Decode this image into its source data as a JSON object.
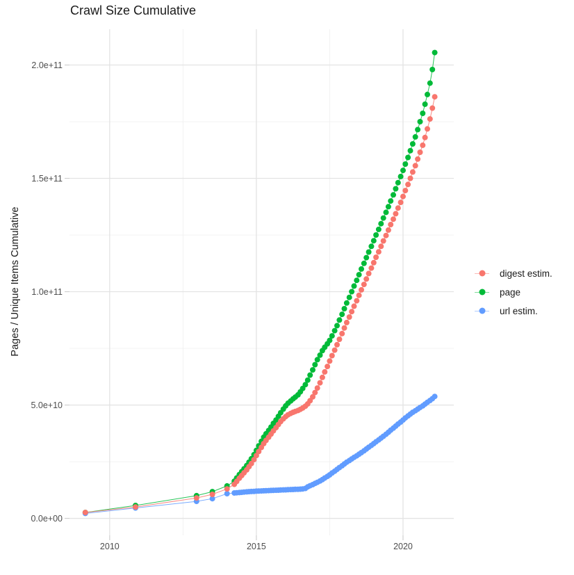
{
  "page": {
    "background": "#FFFFFF"
  },
  "chart_data": {
    "type": "line",
    "title": "Crawl Size Cumulative",
    "xlabel": "",
    "ylabel": "Pages / Unique Items Cumulative",
    "values_unit": "billions (1e9) of pages / unique items, y axis shown in scientific notation",
    "grid": "on",
    "legend_position": "right-center",
    "x_axis": {
      "range": [
        2008.63,
        2021.73
      ],
      "major_ticks": [
        {
          "label": "2010",
          "value": 2010
        },
        {
          "label": "2015",
          "value": 2015
        },
        {
          "label": "2020",
          "value": 2020
        }
      ],
      "minor_ticks": [
        2012.5,
        2017.5
      ]
    },
    "y_axis": {
      "range_billions": [
        -7.5,
        215.8
      ],
      "major_ticks": [
        {
          "label": "0.0e+00",
          "billions": 0
        },
        {
          "label": "5.0e+10",
          "billions": 50
        },
        {
          "label": "1.0e+11",
          "billions": 100
        },
        {
          "label": "1.5e+11",
          "billions": 150
        },
        {
          "label": "2.0e+11",
          "billions": 200
        }
      ],
      "minor_ticks_billions": [
        25,
        75,
        125,
        175
      ]
    },
    "series": [
      {
        "name": "digest estim.",
        "color": "#F8766D",
        "points": [
          [
            2009.17,
            2.6
          ],
          [
            2010.88,
            5.0
          ],
          [
            2012.96,
            9.0
          ],
          [
            2013.5,
            10.6
          ],
          [
            2014.0,
            13.0
          ],
          [
            2014.25,
            15.0
          ],
          [
            2014.33,
            16.3
          ],
          [
            2014.42,
            17.7
          ],
          [
            2014.5,
            18.9
          ],
          [
            2014.58,
            20.1
          ],
          [
            2014.67,
            21.4
          ],
          [
            2014.75,
            22.8
          ],
          [
            2014.83,
            24.2
          ],
          [
            2014.92,
            25.9
          ],
          [
            2015.0,
            27.7
          ],
          [
            2015.08,
            29.5
          ],
          [
            2015.17,
            31.3
          ],
          [
            2015.25,
            33.0
          ],
          [
            2015.33,
            34.4
          ],
          [
            2015.42,
            35.8
          ],
          [
            2015.5,
            37.2
          ],
          [
            2015.58,
            38.6
          ],
          [
            2015.67,
            40.0
          ],
          [
            2015.75,
            41.4
          ],
          [
            2015.83,
            42.7
          ],
          [
            2015.92,
            43.9
          ],
          [
            2016.0,
            44.9
          ],
          [
            2016.08,
            45.7
          ],
          [
            2016.17,
            46.3
          ],
          [
            2016.25,
            46.8
          ],
          [
            2016.33,
            47.2
          ],
          [
            2016.42,
            47.6
          ],
          [
            2016.5,
            48.1
          ],
          [
            2016.58,
            48.7
          ],
          [
            2016.67,
            49.5
          ],
          [
            2016.75,
            50.5
          ],
          [
            2016.83,
            51.9
          ],
          [
            2016.92,
            53.6
          ],
          [
            2017.0,
            55.5
          ],
          [
            2017.08,
            57.5
          ],
          [
            2017.17,
            59.8
          ],
          [
            2017.25,
            62.2
          ],
          [
            2017.33,
            64.6
          ],
          [
            2017.42,
            67.0
          ],
          [
            2017.5,
            69.4
          ],
          [
            2017.58,
            71.8
          ],
          [
            2017.67,
            74.2
          ],
          [
            2017.75,
            76.6
          ],
          [
            2017.83,
            79.0
          ],
          [
            2017.92,
            81.5
          ],
          [
            2018.0,
            84.0
          ],
          [
            2018.08,
            86.4
          ],
          [
            2018.17,
            88.8
          ],
          [
            2018.25,
            91.2
          ],
          [
            2018.33,
            93.6
          ],
          [
            2018.42,
            96.0
          ],
          [
            2018.5,
            98.4
          ],
          [
            2018.58,
            100.8
          ],
          [
            2018.67,
            103.2
          ],
          [
            2018.75,
            105.6
          ],
          [
            2018.83,
            108.0
          ],
          [
            2018.92,
            110.4
          ],
          [
            2019.0,
            112.8
          ],
          [
            2019.08,
            115.2
          ],
          [
            2019.17,
            117.6
          ],
          [
            2019.25,
            120.0
          ],
          [
            2019.33,
            122.4
          ],
          [
            2019.42,
            124.8
          ],
          [
            2019.5,
            127.2
          ],
          [
            2019.58,
            129.6
          ],
          [
            2019.67,
            132.0
          ],
          [
            2019.75,
            134.4
          ],
          [
            2019.83,
            136.9
          ],
          [
            2019.92,
            139.4
          ],
          [
            2020.0,
            142.0
          ],
          [
            2020.08,
            144.6
          ],
          [
            2020.17,
            147.3
          ],
          [
            2020.25,
            150.0
          ],
          [
            2020.33,
            152.8
          ],
          [
            2020.42,
            155.6
          ],
          [
            2020.5,
            158.5
          ],
          [
            2020.58,
            161.5
          ],
          [
            2020.67,
            164.6
          ],
          [
            2020.75,
            168.0
          ],
          [
            2020.83,
            171.8
          ],
          [
            2020.92,
            176.2
          ],
          [
            2021.0,
            181.0
          ],
          [
            2021.08,
            186.0
          ]
        ]
      },
      {
        "name": "page",
        "color": "#00BA38",
        "points": [
          [
            2009.17,
            2.6
          ],
          [
            2010.88,
            5.7
          ],
          [
            2012.96,
            10.0
          ],
          [
            2013.5,
            11.8
          ],
          [
            2014.0,
            14.3
          ],
          [
            2014.25,
            16.4
          ],
          [
            2014.33,
            17.8
          ],
          [
            2014.42,
            19.3
          ],
          [
            2014.5,
            20.6
          ],
          [
            2014.58,
            21.9
          ],
          [
            2014.67,
            23.3
          ],
          [
            2014.75,
            24.8
          ],
          [
            2014.83,
            26.3
          ],
          [
            2014.92,
            28.1
          ],
          [
            2015.0,
            30.0
          ],
          [
            2015.08,
            32.0
          ],
          [
            2015.17,
            34.0
          ],
          [
            2015.25,
            35.8
          ],
          [
            2015.33,
            37.3
          ],
          [
            2015.42,
            38.8
          ],
          [
            2015.5,
            40.3
          ],
          [
            2015.58,
            41.9
          ],
          [
            2015.67,
            43.4
          ],
          [
            2015.75,
            45.0
          ],
          [
            2015.83,
            46.6
          ],
          [
            2015.92,
            48.2
          ],
          [
            2016.0,
            49.6
          ],
          [
            2016.08,
            50.8
          ],
          [
            2016.17,
            51.8
          ],
          [
            2016.25,
            52.7
          ],
          [
            2016.33,
            53.5
          ],
          [
            2016.42,
            54.5
          ],
          [
            2016.5,
            55.8
          ],
          [
            2016.58,
            57.3
          ],
          [
            2016.67,
            59.0
          ],
          [
            2016.75,
            61.0
          ],
          [
            2016.83,
            63.2
          ],
          [
            2016.92,
            65.5
          ],
          [
            2017.0,
            67.8
          ],
          [
            2017.08,
            70.0
          ],
          [
            2017.17,
            72.0
          ],
          [
            2017.25,
            74.0
          ],
          [
            2017.33,
            75.5
          ],
          [
            2017.42,
            77.0
          ],
          [
            2017.5,
            78.5
          ],
          [
            2017.58,
            80.5
          ],
          [
            2017.67,
            82.8
          ],
          [
            2017.75,
            85.0
          ],
          [
            2017.83,
            87.5
          ],
          [
            2017.92,
            90.0
          ],
          [
            2018.0,
            92.5
          ],
          [
            2018.08,
            95.0
          ],
          [
            2018.17,
            97.5
          ],
          [
            2018.25,
            100.0
          ],
          [
            2018.33,
            102.5
          ],
          [
            2018.42,
            105.0
          ],
          [
            2018.5,
            107.5
          ],
          [
            2018.58,
            110.0
          ],
          [
            2018.67,
            112.5
          ],
          [
            2018.75,
            115.0
          ],
          [
            2018.83,
            117.5
          ],
          [
            2018.92,
            120.0
          ],
          [
            2019.0,
            122.5
          ],
          [
            2019.08,
            125.0
          ],
          [
            2019.17,
            127.5
          ],
          [
            2019.25,
            130.0
          ],
          [
            2019.33,
            132.5
          ],
          [
            2019.42,
            135.0
          ],
          [
            2019.5,
            137.5
          ],
          [
            2019.58,
            140.0
          ],
          [
            2019.67,
            142.7
          ],
          [
            2019.75,
            145.4
          ],
          [
            2019.83,
            148.1
          ],
          [
            2019.92,
            150.8
          ],
          [
            2020.0,
            153.5
          ],
          [
            2020.08,
            156.3
          ],
          [
            2020.17,
            159.2
          ],
          [
            2020.25,
            162.2
          ],
          [
            2020.33,
            165.2
          ],
          [
            2020.42,
            168.3
          ],
          [
            2020.5,
            171.5
          ],
          [
            2020.58,
            175.0
          ],
          [
            2020.67,
            178.7
          ],
          [
            2020.75,
            182.7
          ],
          [
            2020.83,
            187.0
          ],
          [
            2020.92,
            192.0
          ],
          [
            2021.0,
            198.0
          ],
          [
            2021.08,
            205.5
          ]
        ]
      },
      {
        "name": "url estim.",
        "color": "#619CFF",
        "points": [
          [
            2009.17,
            2.2
          ],
          [
            2010.88,
            4.6
          ],
          [
            2012.96,
            7.5
          ],
          [
            2013.5,
            8.7
          ],
          [
            2014.0,
            10.9
          ],
          [
            2014.25,
            11.2
          ],
          [
            2014.33,
            11.3
          ],
          [
            2014.42,
            11.4
          ],
          [
            2014.5,
            11.5
          ],
          [
            2014.58,
            11.6
          ],
          [
            2014.67,
            11.7
          ],
          [
            2014.75,
            11.8
          ],
          [
            2014.83,
            11.85
          ],
          [
            2014.92,
            11.9
          ],
          [
            2015.0,
            12.0
          ],
          [
            2015.08,
            12.05
          ],
          [
            2015.17,
            12.1
          ],
          [
            2015.25,
            12.15
          ],
          [
            2015.33,
            12.2
          ],
          [
            2015.42,
            12.25
          ],
          [
            2015.5,
            12.3
          ],
          [
            2015.58,
            12.35
          ],
          [
            2015.67,
            12.4
          ],
          [
            2015.75,
            12.45
          ],
          [
            2015.83,
            12.5
          ],
          [
            2015.92,
            12.55
          ],
          [
            2016.0,
            12.6
          ],
          [
            2016.08,
            12.65
          ],
          [
            2016.17,
            12.7
          ],
          [
            2016.25,
            12.75
          ],
          [
            2016.33,
            12.8
          ],
          [
            2016.42,
            12.85
          ],
          [
            2016.5,
            12.9
          ],
          [
            2016.58,
            13.0
          ],
          [
            2016.67,
            13.2
          ],
          [
            2016.75,
            13.9
          ],
          [
            2016.83,
            14.4
          ],
          [
            2016.92,
            14.9
          ],
          [
            2017.0,
            15.4
          ],
          [
            2017.08,
            15.9
          ],
          [
            2017.17,
            16.5
          ],
          [
            2017.25,
            17.1
          ],
          [
            2017.33,
            17.8
          ],
          [
            2017.42,
            18.5
          ],
          [
            2017.5,
            19.2
          ],
          [
            2017.58,
            20.0
          ],
          [
            2017.67,
            20.8
          ],
          [
            2017.75,
            21.6
          ],
          [
            2017.83,
            22.4
          ],
          [
            2017.92,
            23.2
          ],
          [
            2018.0,
            24.0
          ],
          [
            2018.08,
            24.8
          ],
          [
            2018.17,
            25.5
          ],
          [
            2018.25,
            26.2
          ],
          [
            2018.33,
            26.9
          ],
          [
            2018.42,
            27.6
          ],
          [
            2018.5,
            28.3
          ],
          [
            2018.58,
            29.0
          ],
          [
            2018.67,
            29.8
          ],
          [
            2018.75,
            30.6
          ],
          [
            2018.83,
            31.4
          ],
          [
            2018.92,
            32.2
          ],
          [
            2019.0,
            33.0
          ],
          [
            2019.08,
            33.8
          ],
          [
            2019.17,
            34.6
          ],
          [
            2019.25,
            35.4
          ],
          [
            2019.33,
            36.2
          ],
          [
            2019.42,
            37.1
          ],
          [
            2019.5,
            38.0
          ],
          [
            2019.58,
            38.9
          ],
          [
            2019.67,
            39.8
          ],
          [
            2019.75,
            40.7
          ],
          [
            2019.83,
            41.6
          ],
          [
            2019.92,
            42.5
          ],
          [
            2020.0,
            43.4
          ],
          [
            2020.08,
            44.3
          ],
          [
            2020.17,
            45.2
          ],
          [
            2020.25,
            46.0
          ],
          [
            2020.33,
            46.8
          ],
          [
            2020.42,
            47.5
          ],
          [
            2020.5,
            48.2
          ],
          [
            2020.58,
            48.9
          ],
          [
            2020.67,
            49.6
          ],
          [
            2020.75,
            50.4
          ],
          [
            2020.83,
            51.2
          ],
          [
            2020.92,
            52.0
          ],
          [
            2021.0,
            52.8
          ],
          [
            2021.08,
            53.8
          ]
        ]
      }
    ]
  }
}
